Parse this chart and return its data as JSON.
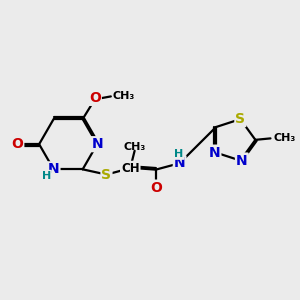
{
  "bg_color": "#ebebeb",
  "atom_colors": {
    "C": "#000000",
    "N": "#0000cc",
    "O": "#cc0000",
    "S": "#aaaa00",
    "H": "#008888"
  },
  "bond_color": "#000000",
  "bond_width": 1.6,
  "dbo": 0.055,
  "figsize": [
    3.0,
    3.0
  ],
  "dpi": 100,
  "xlim": [
    0,
    10
  ],
  "ylim": [
    0,
    10
  ]
}
